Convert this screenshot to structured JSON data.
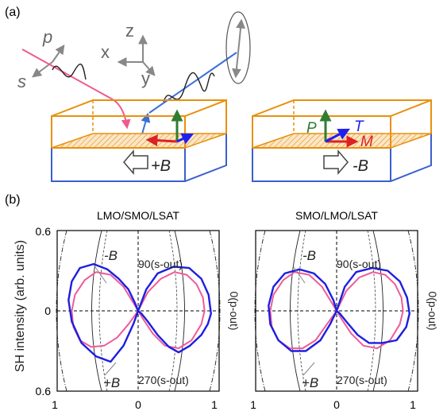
{
  "figure": {
    "panel_a": {
      "label": "(a)",
      "axes": {
        "z": "z",
        "x": "x",
        "y": "y"
      },
      "polarizations": {
        "p": "p",
        "s": "s"
      },
      "left_device": {
        "field_label": "+B"
      },
      "right_device": {
        "field_label": "-B",
        "P": "P",
        "T": "T",
        "M": "M"
      },
      "colors": {
        "substrate": "#3a5fcd",
        "film": "#e8900c",
        "incident": "#f05a8c",
        "outgoing": "#3a6fd8",
        "P": "#2e7d32",
        "T": "#2020ee",
        "M": "#dd2222"
      }
    },
    "panel_b": {
      "label": "(b)",
      "ylabel": "SH intensity (arb. units)",
      "y_ticks": [
        "0.6",
        "0",
        "0.6"
      ],
      "x_ticks": [
        "1",
        "0",
        "1"
      ],
      "polar_labels": {
        "top": "90(s-out)",
        "bottom": "270(s-out)",
        "right": "0(p-out)"
      },
      "series_labels": {
        "minus": "-B",
        "plus": "+B"
      }
    }
  },
  "chart_data": [
    {
      "type": "polar-line",
      "title": "LMO/SMO/LSAT",
      "ylabel": "SH intensity (arb. units)",
      "xlim": [
        -1,
        1
      ],
      "ylim": [
        -0.6,
        0.6
      ],
      "series": [
        {
          "name": "-B",
          "color": "#ee5b9a",
          "x": [
            0,
            0.12,
            0.28,
            0.45,
            0.6,
            0.72,
            0.8,
            0.82,
            0.78,
            0.66,
            0.5,
            0.33,
            0.18,
            0.06,
            0,
            -0.06,
            -0.18,
            -0.34,
            -0.52,
            -0.66,
            -0.78,
            -0.82,
            -0.8,
            -0.72,
            -0.58,
            -0.42,
            -0.26,
            -0.12,
            0
          ],
          "y": [
            0,
            0.14,
            0.24,
            0.29,
            0.27,
            0.2,
            0.1,
            0,
            -0.1,
            -0.22,
            -0.28,
            -0.26,
            -0.17,
            -0.06,
            0,
            0.06,
            0.18,
            0.27,
            0.29,
            0.23,
            0.12,
            0,
            -0.12,
            -0.22,
            -0.27,
            -0.26,
            -0.2,
            -0.1,
            0
          ]
        },
        {
          "name": "+B",
          "color": "#1e1ee0",
          "x": [
            0,
            0.1,
            0.24,
            0.44,
            0.63,
            0.78,
            0.87,
            0.9,
            0.86,
            0.78,
            0.64,
            0.5,
            0.38,
            0.24,
            0.12,
            0.04,
            0,
            -0.04,
            -0.12,
            -0.24,
            -0.38,
            -0.55,
            -0.72,
            -0.82,
            -0.86,
            -0.82,
            -0.7,
            -0.52,
            -0.34,
            -0.18,
            -0.06,
            0
          ],
          "y": [
            0,
            0.16,
            0.28,
            0.33,
            0.32,
            0.24,
            0.12,
            -0.02,
            -0.1,
            -0.18,
            -0.26,
            -0.31,
            -0.27,
            -0.18,
            -0.08,
            -0.02,
            0,
            0.06,
            0.16,
            0.24,
            0.31,
            0.35,
            0.32,
            0.22,
            0.08,
            -0.08,
            -0.24,
            -0.34,
            -0.38,
            -0.26,
            -0.1,
            0
          ]
        }
      ]
    },
    {
      "type": "polar-line",
      "title": "SMO/LMO/LSAT",
      "xlim": [
        -1,
        1
      ],
      "ylim": [
        -0.6,
        0.6
      ],
      "series": [
        {
          "name": "-B",
          "color": "#ee5b9a",
          "x": [
            0,
            0.12,
            0.28,
            0.45,
            0.6,
            0.72,
            0.8,
            0.82,
            0.78,
            0.66,
            0.5,
            0.33,
            0.18,
            0.06,
            0,
            -0.06,
            -0.18,
            -0.34,
            -0.52,
            -0.66,
            -0.78,
            -0.82,
            -0.8,
            -0.72,
            -0.58,
            -0.42,
            -0.26,
            -0.12,
            0
          ],
          "y": [
            0,
            0.15,
            0.25,
            0.29,
            0.27,
            0.2,
            0.1,
            0,
            -0.1,
            -0.22,
            -0.28,
            -0.26,
            -0.17,
            -0.06,
            0,
            0.06,
            0.18,
            0.27,
            0.29,
            0.23,
            0.12,
            0,
            -0.12,
            -0.22,
            -0.28,
            -0.28,
            -0.22,
            -0.1,
            0
          ]
        },
        {
          "name": "+B",
          "color": "#1e1ee0",
          "x": [
            0,
            0.1,
            0.24,
            0.44,
            0.63,
            0.78,
            0.87,
            0.9,
            0.86,
            0.74,
            0.56,
            0.4,
            0.26,
            0.12,
            0.04,
            0,
            -0.04,
            -0.14,
            -0.28,
            -0.46,
            -0.64,
            -0.78,
            -0.84,
            -0.82,
            -0.72,
            -0.56,
            -0.38,
            -0.2,
            -0.08,
            0
          ],
          "y": [
            0,
            0.18,
            0.29,
            0.32,
            0.3,
            0.22,
            0.1,
            -0.02,
            -0.12,
            -0.22,
            -0.24,
            -0.24,
            -0.18,
            -0.08,
            -0.02,
            0,
            0.08,
            0.2,
            0.28,
            0.31,
            0.28,
            0.18,
            0.04,
            -0.1,
            -0.22,
            -0.3,
            -0.3,
            -0.22,
            -0.1,
            0
          ]
        }
      ]
    }
  ]
}
